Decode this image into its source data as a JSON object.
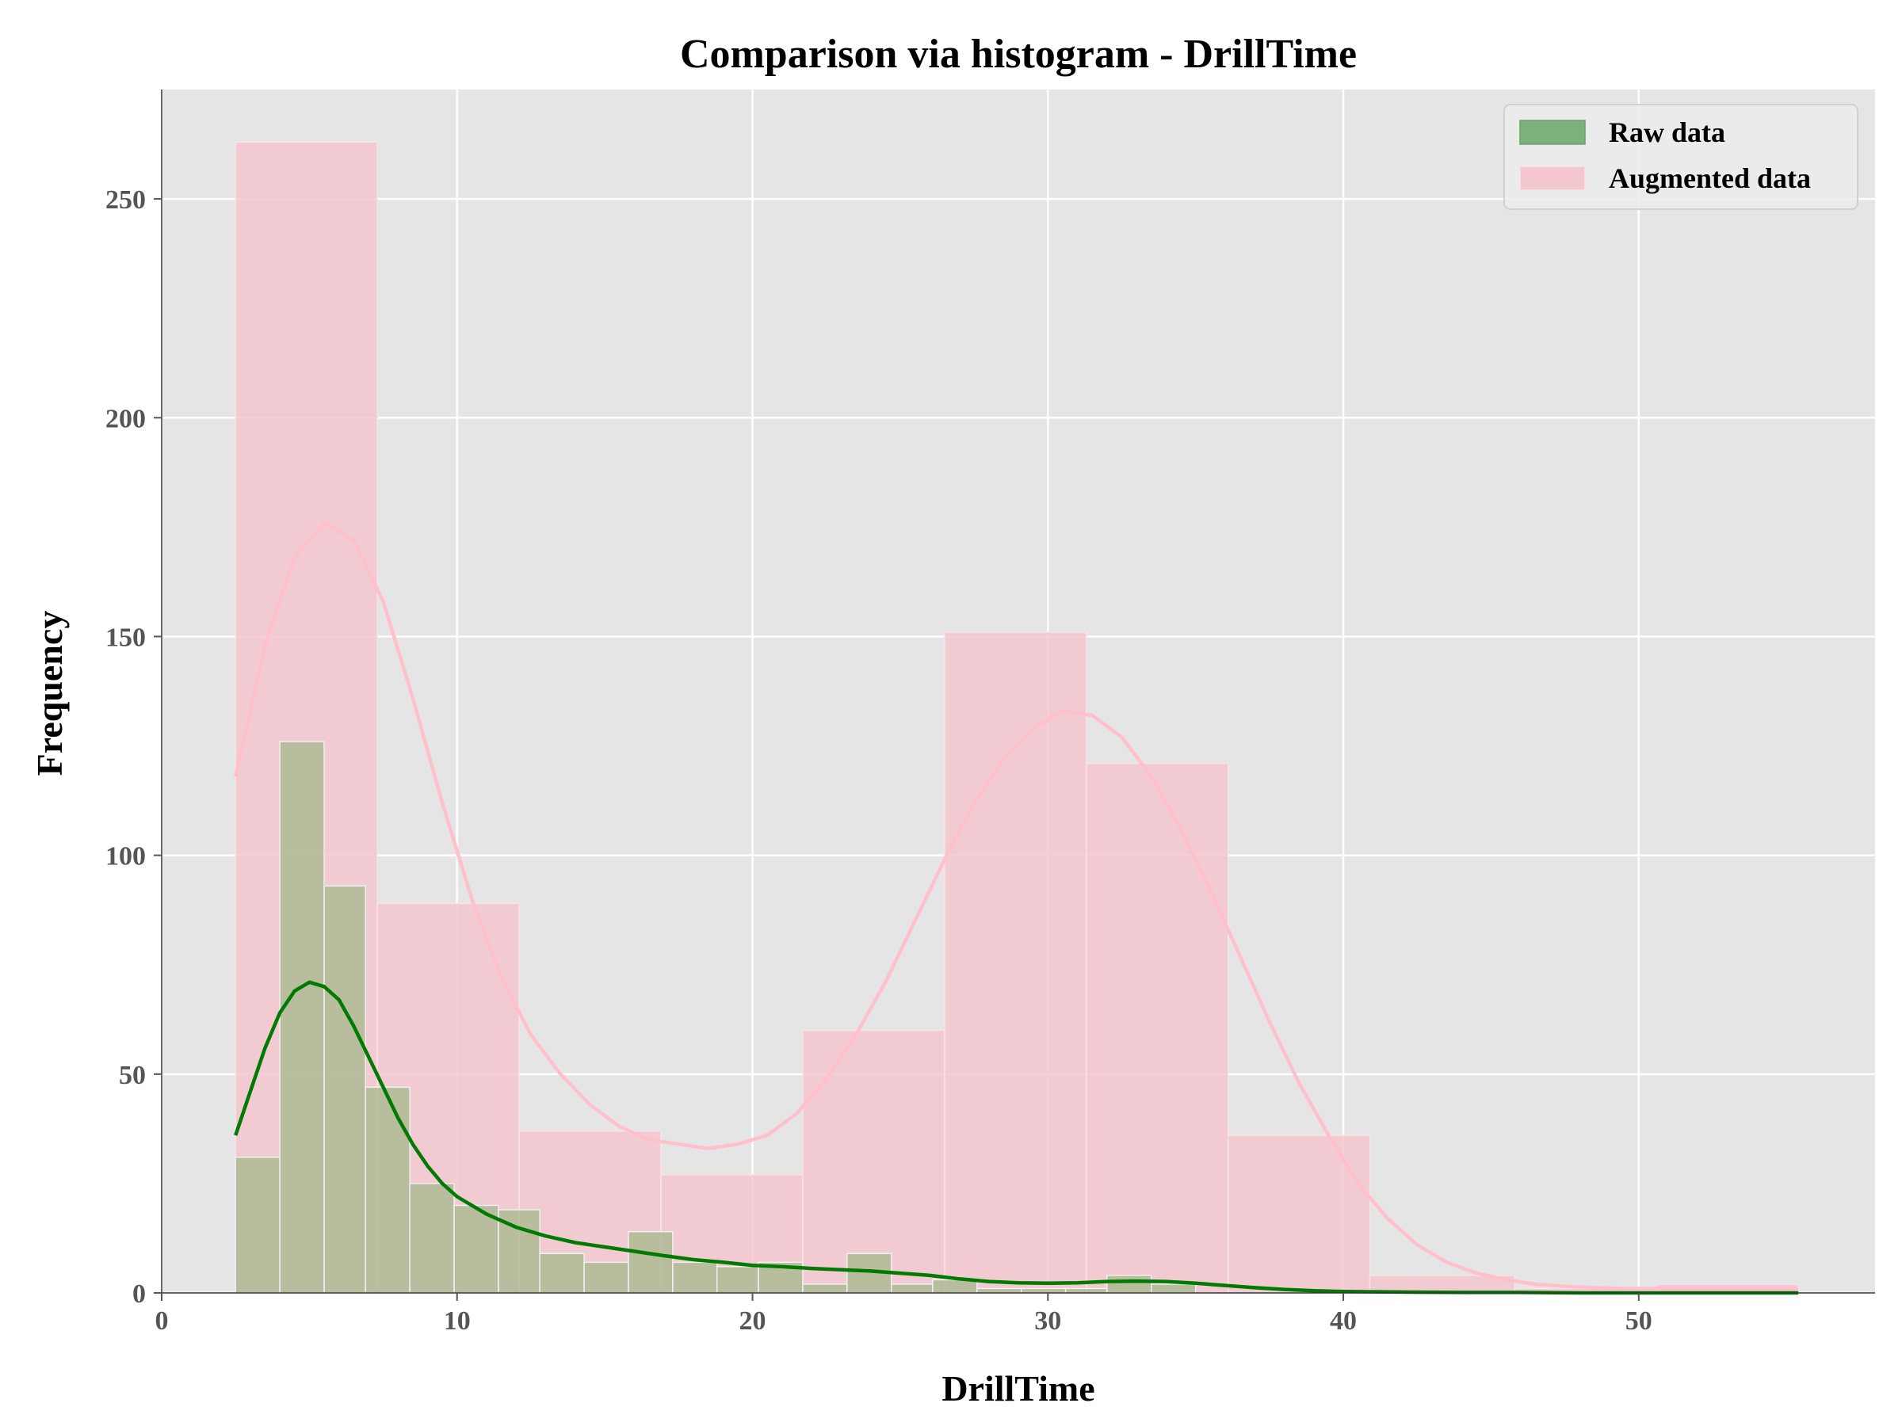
{
  "chart_data": {
    "type": "bar",
    "title": "Comparison via histogram - DrillTime",
    "xlabel": "DrillTime",
    "ylabel": "Frequency",
    "xlim": [
      0,
      58
    ],
    "ylim": [
      0,
      275
    ],
    "xticks": [
      0,
      10,
      20,
      30,
      40,
      50
    ],
    "yticks": [
      0,
      50,
      100,
      150,
      200,
      250
    ],
    "grid": true,
    "legend_position": "top-right",
    "series": [
      {
        "name": "Augmented data",
        "color": "#f4c7cf",
        "kde_color": "#ffc0cb",
        "bins": [
          {
            "x0": 2.5,
            "x1": 7.3,
            "count": 263
          },
          {
            "x0": 7.3,
            "x1": 12.1,
            "count": 89
          },
          {
            "x0": 12.1,
            "x1": 16.9,
            "count": 37
          },
          {
            "x0": 16.9,
            "x1": 21.7,
            "count": 27
          },
          {
            "x0": 21.7,
            "x1": 26.5,
            "count": 60
          },
          {
            "x0": 26.5,
            "x1": 31.3,
            "count": 151
          },
          {
            "x0": 31.3,
            "x1": 36.1,
            "count": 121
          },
          {
            "x0": 36.1,
            "x1": 40.9,
            "count": 36
          },
          {
            "x0": 40.9,
            "x1": 45.8,
            "count": 4
          },
          {
            "x0": 45.8,
            "x1": 50.6,
            "count": 1
          },
          {
            "x0": 50.6,
            "x1": 55.4,
            "count": 2
          }
        ],
        "kde": {
          "x": [
            2.5,
            3.5,
            4.5,
            5.5,
            6.5,
            7.5,
            8.5,
            9.5,
            10.5,
            11.5,
            12.5,
            13.5,
            14.5,
            15.5,
            16.5,
            17.5,
            18.5,
            19.5,
            20.5,
            21.5,
            22.5,
            23.5,
            24.5,
            25.5,
            26.5,
            27.5,
            28.5,
            29.5,
            30.5,
            31.5,
            32.5,
            33.5,
            34.5,
            35.5,
            36.5,
            37.5,
            38.5,
            39.5,
            40.5,
            41.5,
            42.5,
            43.5,
            44.5,
            45.5,
            46.5,
            47.5,
            48.5,
            49.5,
            50.5,
            51.5,
            52.5,
            53.5,
            54.5,
            55.4
          ],
          "y": [
            118,
            148,
            168,
            176,
            172,
            158,
            136,
            112,
            90,
            72,
            59,
            50,
            43,
            38,
            35,
            34,
            33,
            34,
            36,
            41,
            49,
            59,
            71,
            85,
            99,
            112,
            122,
            129,
            133,
            132,
            127,
            118,
            106,
            92,
            77,
            62,
            48,
            36,
            25,
            17,
            11,
            7,
            4.5,
            3,
            2,
            1.5,
            1.2,
            1,
            1,
            1,
            1,
            1,
            1,
            1
          ]
        }
      },
      {
        "name": "Raw data",
        "color": "#7cb07c",
        "kde_color": "#007a00",
        "bins": [
          {
            "x0": 2.5,
            "x1": 4.0,
            "count": 31
          },
          {
            "x0": 4.0,
            "x1": 5.5,
            "count": 126
          },
          {
            "x0": 5.5,
            "x1": 6.9,
            "count": 93
          },
          {
            "x0": 6.9,
            "x1": 8.4,
            "count": 47
          },
          {
            "x0": 8.4,
            "x1": 9.9,
            "count": 25
          },
          {
            "x0": 9.9,
            "x1": 11.4,
            "count": 20
          },
          {
            "x0": 11.4,
            "x1": 12.8,
            "count": 19
          },
          {
            "x0": 12.8,
            "x1": 14.3,
            "count": 9
          },
          {
            "x0": 14.3,
            "x1": 15.8,
            "count": 7
          },
          {
            "x0": 15.8,
            "x1": 17.3,
            "count": 14
          },
          {
            "x0": 17.3,
            "x1": 18.8,
            "count": 7
          },
          {
            "x0": 18.8,
            "x1": 20.2,
            "count": 6
          },
          {
            "x0": 20.2,
            "x1": 21.7,
            "count": 7
          },
          {
            "x0": 21.7,
            "x1": 23.2,
            "count": 2
          },
          {
            "x0": 23.2,
            "x1": 24.7,
            "count": 9
          },
          {
            "x0": 24.7,
            "x1": 26.1,
            "count": 2
          },
          {
            "x0": 26.1,
            "x1": 27.6,
            "count": 3
          },
          {
            "x0": 27.6,
            "x1": 29.1,
            "count": 1
          },
          {
            "x0": 29.1,
            "x1": 30.6,
            "count": 1
          },
          {
            "x0": 30.6,
            "x1": 32.0,
            "count": 1
          },
          {
            "x0": 32.0,
            "x1": 33.5,
            "count": 4
          },
          {
            "x0": 33.5,
            "x1": 35.0,
            "count": 2
          }
        ],
        "kde": {
          "x": [
            2.5,
            3.0,
            3.5,
            4.0,
            4.5,
            5.0,
            5.5,
            6.0,
            6.5,
            7.0,
            7.5,
            8.0,
            8.5,
            9.0,
            9.5,
            10.0,
            11.0,
            12.0,
            13.0,
            14.0,
            15.0,
            16.0,
            17.0,
            18.0,
            19.0,
            20.0,
            21.0,
            22.0,
            23.0,
            24.0,
            25.0,
            26.0,
            27.0,
            28.0,
            29.0,
            30.0,
            31.0,
            32.0,
            33.0,
            34.0,
            35.0,
            36.0,
            37.0,
            38.0,
            39.0,
            40.0,
            42.0,
            44.0,
            46.0,
            48.0,
            50.0,
            52.0,
            54.0,
            55.4
          ],
          "y": [
            36,
            46,
            56,
            64,
            69,
            71,
            70,
            67,
            61,
            54,
            47,
            40,
            34,
            29,
            25,
            22,
            18,
            15,
            13,
            11.5,
            10.5,
            9.5,
            8.5,
            7.6,
            7,
            6.3,
            6,
            5.6,
            5.3,
            5,
            4.5,
            4,
            3.2,
            2.6,
            2.3,
            2.2,
            2.3,
            2.6,
            2.7,
            2.6,
            2.2,
            1.7,
            1.2,
            0.8,
            0.5,
            0.3,
            0.2,
            0.1,
            0.1,
            0,
            0,
            0,
            0,
            0
          ]
        }
      }
    ]
  }
}
